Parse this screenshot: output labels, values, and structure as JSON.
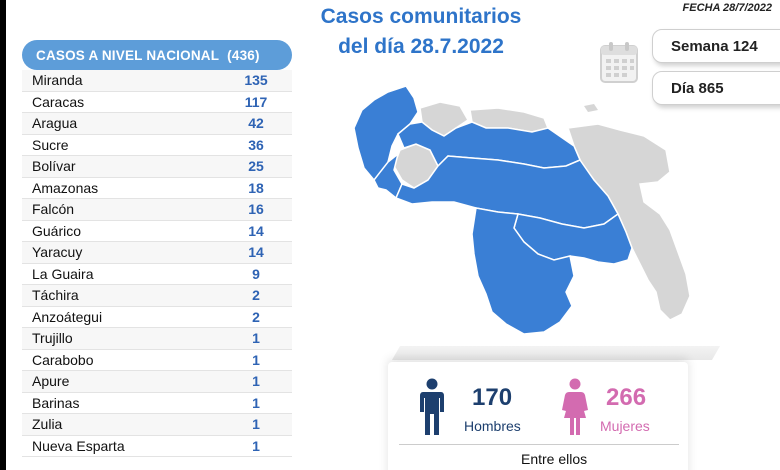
{
  "header": {
    "title_line1": "Casos comunitarios",
    "title_line2": "del día 28.7.2022",
    "fecha": "FECHA 28/7/2022"
  },
  "counters": {
    "semana": "Semana 124",
    "dia": "Día 865"
  },
  "table": {
    "title": "CASOS A NIVEL NACIONAL",
    "total": "(436)",
    "rows": [
      {
        "state": "Miranda",
        "value": "135"
      },
      {
        "state": "Caracas",
        "value": "117"
      },
      {
        "state": "Aragua",
        "value": "42"
      },
      {
        "state": "Sucre",
        "value": "36"
      },
      {
        "state": "Bolívar",
        "value": "25"
      },
      {
        "state": "Amazonas",
        "value": "18"
      },
      {
        "state": "Falcón",
        "value": "16"
      },
      {
        "state": "Guárico",
        "value": "14"
      },
      {
        "state": "Yaracuy",
        "value": "14"
      },
      {
        "state": "La Guaira",
        "value": "9"
      },
      {
        "state": "Táchira",
        "value": "2"
      },
      {
        "state": "Anzoátegui",
        "value": "2"
      },
      {
        "state": "Trujillo",
        "value": "1"
      },
      {
        "state": "Carabobo",
        "value": "1"
      },
      {
        "state": "Apure",
        "value": "1"
      },
      {
        "state": "Barinas",
        "value": "1"
      },
      {
        "state": "Zulia",
        "value": "1"
      },
      {
        "state": "Nueva Esparta",
        "value": "1"
      }
    ]
  },
  "stats": {
    "men_count": "170",
    "men_label": "Hombres",
    "women_count": "266",
    "women_label": "Mujeres",
    "entre_label": "Entre ellos"
  },
  "colors": {
    "accent_blue": "#2e74c9",
    "header_blue": "#5d9dd9",
    "map_affected": "#3a7fd5",
    "map_unaffected": "#d6d6d6",
    "men": "#1d3f6e",
    "women": "#d36bb0"
  },
  "icons": [
    "calendar-icon",
    "man-icon",
    "woman-icon"
  ]
}
